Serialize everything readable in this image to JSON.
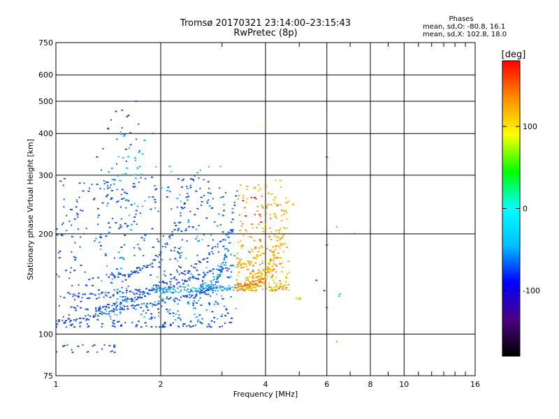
{
  "chart_data": {
    "type": "scatter",
    "title": "Tromsø 20170321 23:14:00–23:15:43",
    "subtitle": "RwPretec (8p)",
    "xlabel": "Frequency [MHz]",
    "ylabel": "Stationary phase Virtual Height [km]",
    "x_scale": "log",
    "y_scale": "log",
    "xlim": [
      1,
      16
    ],
    "ylim": [
      75,
      750
    ],
    "x_ticks": [
      1,
      2,
      4,
      6,
      8,
      10,
      16
    ],
    "x_tick_labels": [
      "1",
      "2",
      "4",
      "6",
      "8",
      "10",
      "16"
    ],
    "x_minor_ticks": [
      3,
      5,
      7,
      9,
      11,
      12,
      13,
      14,
      15
    ],
    "y_ticks": [
      75,
      100,
      200,
      300,
      400,
      500,
      600,
      750
    ],
    "y_tick_labels": [
      "75",
      "100",
      "200",
      "300",
      "400",
      "500",
      "600",
      "750"
    ],
    "grid": true,
    "legend": {
      "title": "Phases",
      "entries": [
        "mean, sd,O: -80.8, 16.1",
        "mean, sd,X: 102.8, 18.0"
      ],
      "placement": "top-right"
    },
    "colorbar": {
      "label": "[deg]",
      "min": -180,
      "max": 180,
      "ticks": [
        100,
        0,
        -100
      ],
      "tick_labels": [
        "100",
        "0",
        "-100"
      ],
      "colormap": [
        "#000000",
        "#4b0082",
        "#0000ff",
        "#00bfff",
        "#00ffff",
        "#00ff00",
        "#ffff00",
        "#ff8c00",
        "#ff0000"
      ]
    },
    "series": [
      {
        "color": "#1a4fd6",
        "traces": [
          {
            "f0": 1.0,
            "f1": 3.1,
            "h0": 108,
            "h1": 138,
            "shape": "flat",
            "n": 90
          },
          {
            "f0": 1.3,
            "f1": 3.2,
            "h0": 118,
            "h1": 160,
            "shape": "flat",
            "n": 80
          },
          {
            "f0": 1.1,
            "f1": 3.25,
            "h0": 130,
            "h1": 210,
            "shape": "rise",
            "n": 90
          },
          {
            "f0": 2.6,
            "f1": 3.3,
            "h0": 135,
            "h1": 270,
            "shape": "rise",
            "n": 50
          },
          {
            "f0": 1.4,
            "f1": 2.5,
            "h0": 150,
            "h1": 300,
            "shape": "rise",
            "n": 60
          }
        ],
        "clusters": [
          {
            "x": [
              1.0,
              3.2
            ],
            "y": [
              105,
              300
            ],
            "n": 480
          },
          {
            "x": [
              1.3,
              1.75
            ],
            "y": [
              210,
              480
            ],
            "n": 45
          },
          {
            "x": [
              1.0,
              1.5
            ],
            "y": [
              88,
              93
            ],
            "n": 22
          }
        ],
        "points": [
          [
            6.0,
            340
          ],
          [
            6.0,
            185
          ],
          [
            6.0,
            120
          ],
          [
            5.6,
            145
          ],
          [
            5.9,
            135
          ],
          [
            7.2,
            200
          ],
          [
            1.55,
            470
          ],
          [
            1.7,
            500
          ],
          [
            1.9,
            400
          ]
        ]
      },
      {
        "color": "#20b8e0",
        "traces": [
          {
            "f0": 1.9,
            "f1": 3.3,
            "h0": 135,
            "h1": 138,
            "shape": "flat",
            "n": 70
          },
          {
            "f0": 2.6,
            "f1": 3.1,
            "h0": 140,
            "h1": 180,
            "shape": "rise",
            "n": 30
          }
        ],
        "clusters": [
          {
            "x": [
              1.3,
              3.3
            ],
            "y": [
              110,
              320
            ],
            "n": 150
          },
          {
            "x": [
              1.5,
              1.8
            ],
            "y": [
              300,
              420
            ],
            "n": 20
          }
        ],
        "points": [
          [
            2.6,
            310
          ],
          [
            2.55,
            305
          ],
          [
            4.6,
            138
          ],
          [
            1.95,
            135
          ]
        ]
      },
      {
        "color": "#f0b400",
        "traces": [
          {
            "f0": 3.4,
            "f1": 4.55,
            "h0": 138,
            "h1": 205,
            "shape": "rise",
            "n": 60
          },
          {
            "f0": 3.6,
            "f1": 4.6,
            "h0": 150,
            "h1": 260,
            "shape": "rise",
            "n": 50
          },
          {
            "f0": 3.3,
            "f1": 3.9,
            "h0": 160,
            "h1": 185,
            "shape": "rise",
            "n": 25
          }
        ],
        "clusters": [
          {
            "x": [
              3.3,
              4.7
            ],
            "y": [
              135,
              290
            ],
            "n": 160
          }
        ],
        "points": [
          [
            4.0,
            425
          ],
          [
            4.8,
            245
          ],
          [
            5.0,
            128
          ],
          [
            4.9,
            128
          ]
        ]
      },
      {
        "color": "#f07a10",
        "traces": [
          {
            "f0": 3.3,
            "f1": 4.0,
            "h0": 138,
            "h1": 145,
            "shape": "flat",
            "n": 40
          }
        ],
        "clusters": [
          {
            "x": [
              3.3,
              4.5
            ],
            "y": [
              135,
              260
            ],
            "n": 60
          }
        ],
        "points": [
          [
            6.4,
            210
          ],
          [
            6.4,
            95
          ],
          [
            4.0,
            280
          ]
        ]
      },
      {
        "color": "#c8e800",
        "traces": [],
        "clusters": [
          {
            "x": [
              3.9,
              4.7
            ],
            "y": [
              135,
              250
            ],
            "n": 18
          }
        ],
        "points": [
          [
            5.0,
            127
          ],
          [
            5.05,
            128
          ]
        ]
      },
      {
        "color": "#2ad48a",
        "traces": [],
        "clusters": [
          {
            "x": [
              2.2,
              4.0
            ],
            "y": [
              150,
              260
            ],
            "n": 10
          }
        ],
        "points": [
          [
            6.5,
            130
          ],
          [
            6.55,
            132
          ]
        ]
      },
      {
        "color": "#e0201a",
        "traces": [],
        "clusters": [
          {
            "x": [
              3.4,
              4.0
            ],
            "y": [
              210,
              260
            ],
            "n": 8
          }
        ],
        "points": []
      }
    ]
  }
}
